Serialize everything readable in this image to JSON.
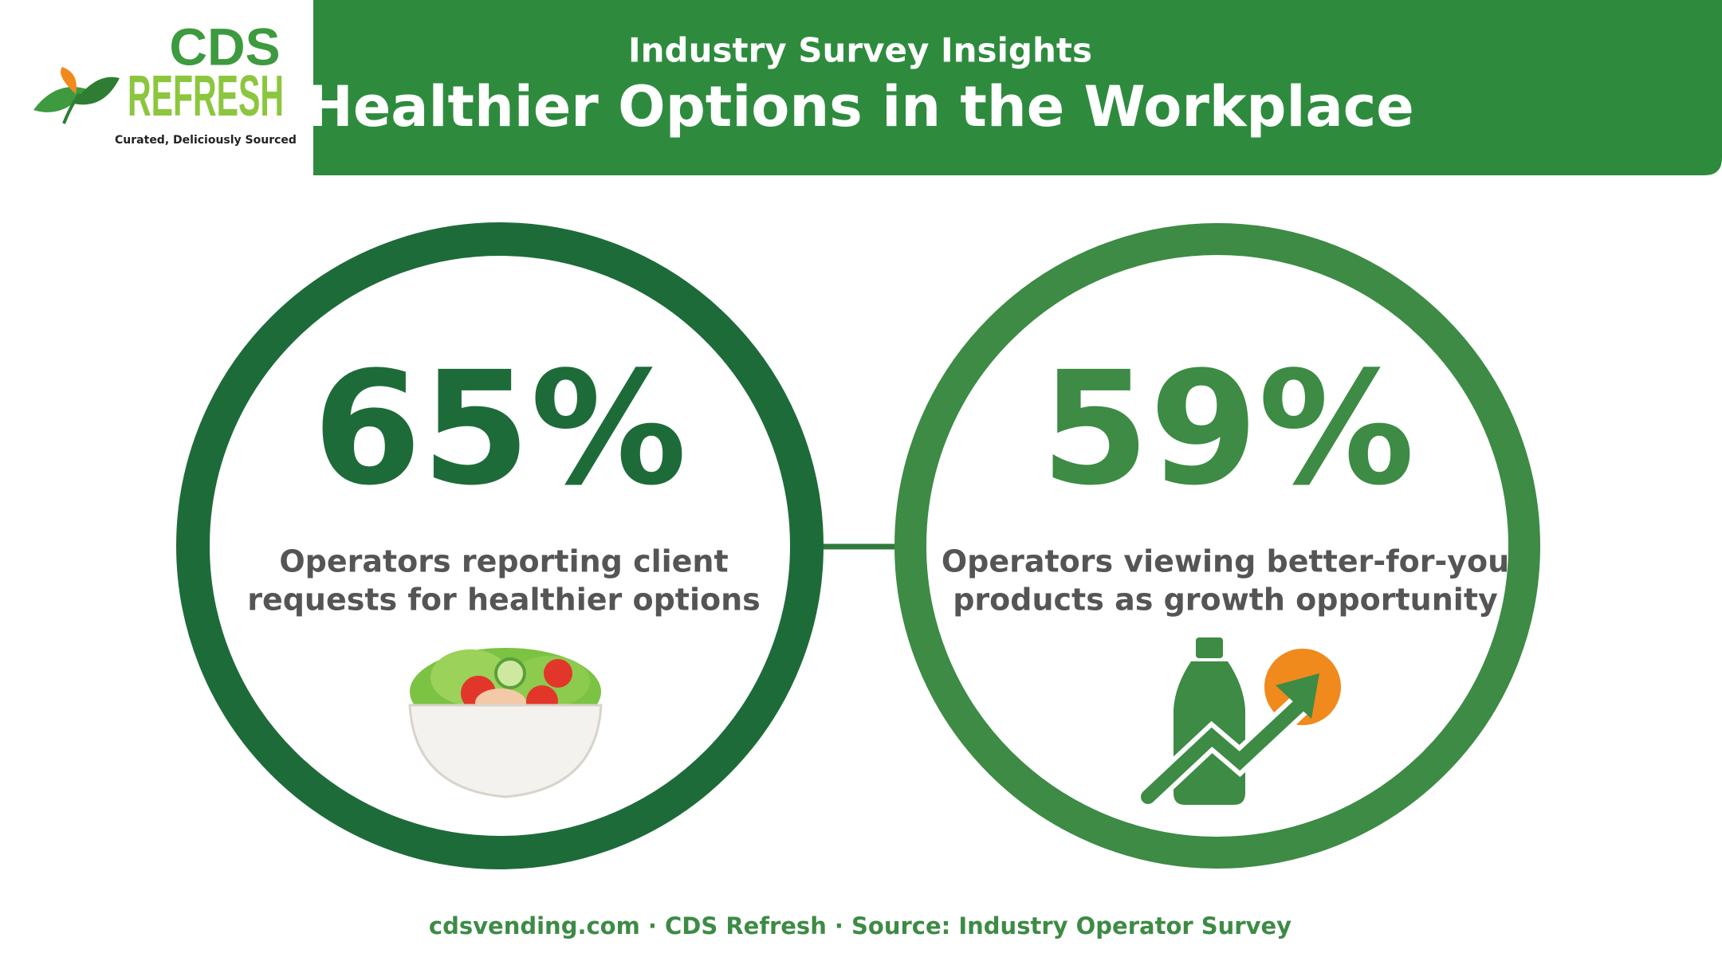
{
  "logo": {
    "brand_top": "CDS",
    "brand_bottom": "REFRESH",
    "tagline": "Curated, Deliciously Sourced"
  },
  "header": {
    "subtitle": "Industry Survey Insights",
    "title": "Healthier Options in the Workplace"
  },
  "stats": [
    {
      "value": "65%",
      "description": [
        "Operators reporting client",
        "requests for healthier options"
      ]
    },
    {
      "value": "59%",
      "description": [
        "Operators viewing better-for-you",
        "products as growth opportunity"
      ]
    }
  ],
  "footer": "cdsvending.com · CDS Refresh · Source: Industry Operator Survey"
}
